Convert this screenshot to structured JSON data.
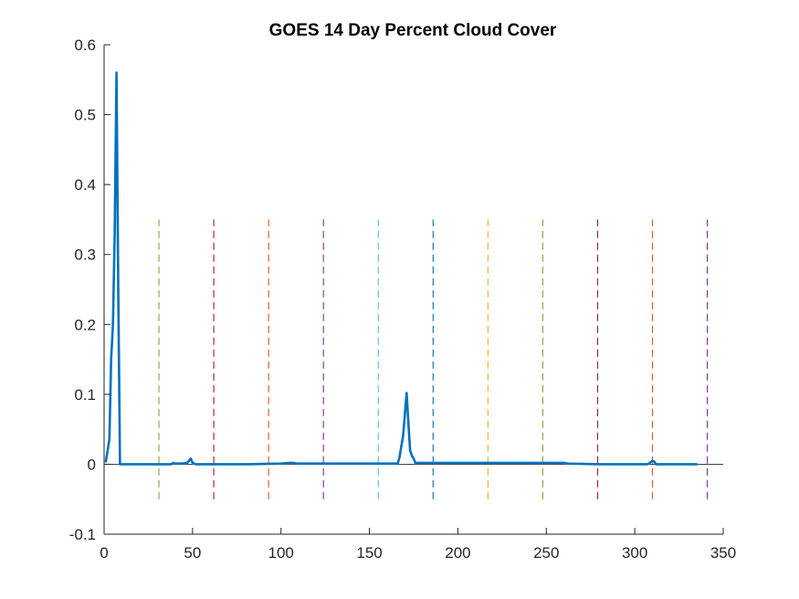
{
  "chart_data": {
    "type": "line",
    "title": "GOES 14 Day Percent Cloud Cover",
    "xlabel": "",
    "ylabel": "",
    "xlim": [
      0,
      350
    ],
    "ylim": [
      -0.1,
      0.6
    ],
    "xticks": [
      0,
      50,
      100,
      150,
      200,
      250,
      300,
      350
    ],
    "yticks": [
      -0.1,
      0,
      0.1,
      0.2,
      0.3,
      0.4,
      0.5,
      0.6
    ],
    "xtick_labels": [
      "0",
      "50",
      "100",
      "150",
      "200",
      "250",
      "300",
      "350"
    ],
    "ytick_labels": [
      "-0.1",
      "0",
      "0.1",
      "0.2",
      "0.3",
      "0.4",
      "0.5",
      "0.6"
    ],
    "grid": false,
    "zero_line": true,
    "series": [
      {
        "color": "#0072BD",
        "x": [
          1,
          2,
          3,
          4,
          5,
          6,
          7,
          8,
          9,
          10,
          20,
          30,
          38,
          39,
          40,
          44,
          47,
          48,
          49,
          50,
          52,
          60,
          80,
          100,
          105,
          107,
          109,
          120,
          140,
          160,
          166,
          167,
          168,
          169,
          170,
          171,
          172,
          173,
          174,
          175,
          176,
          178,
          180,
          185,
          200,
          220,
          240,
          260,
          262,
          280,
          300,
          307,
          308,
          309,
          310,
          311,
          312,
          314,
          320,
          335
        ],
        "y": [
          0.004,
          0.02,
          0.036,
          0.15,
          0.2,
          0.33,
          0.56,
          0.25,
          0.0,
          0.0,
          0.0,
          0.0,
          0.0,
          0.002,
          0.001,
          0.001,
          0.002,
          0.005,
          0.008,
          0.002,
          0.0,
          0.0,
          0.0,
          0.001,
          0.002,
          0.002,
          0.001,
          0.001,
          0.001,
          0.001,
          0.001,
          0.01,
          0.025,
          0.04,
          0.07,
          0.102,
          0.06,
          0.02,
          0.012,
          0.008,
          0.002,
          0.002,
          0.002,
          0.002,
          0.002,
          0.002,
          0.002,
          0.002,
          0.001,
          0.0,
          0.0,
          0.0,
          0.001,
          0.003,
          0.005,
          0.004,
          0.0,
          0.0,
          0.0,
          0.0
        ]
      }
    ],
    "vertical_lines": [
      {
        "x": 0,
        "y0": -0.05,
        "y1": 0.35,
        "color": "#EDB120"
      },
      {
        "x": 31,
        "y0": -0.05,
        "y1": 0.35,
        "color": "#77AC30"
      },
      {
        "x": 62,
        "y0": -0.05,
        "y1": 0.35,
        "color": "#A2142F"
      },
      {
        "x": 93,
        "y0": -0.05,
        "y1": 0.35,
        "color": "#D95319"
      },
      {
        "x": 124,
        "y0": -0.05,
        "y1": 0.35,
        "color": "#7E2F8E"
      },
      {
        "x": 155,
        "y0": -0.05,
        "y1": 0.35,
        "color": "#4DBEEE"
      },
      {
        "x": 186,
        "y0": -0.05,
        "y1": 0.35,
        "color": "#0072BD"
      },
      {
        "x": 217,
        "y0": -0.05,
        "y1": 0.35,
        "color": "#EDB120"
      },
      {
        "x": 248,
        "y0": -0.05,
        "y1": 0.35,
        "color": "#77AC30"
      },
      {
        "x": 279,
        "y0": -0.05,
        "y1": 0.35,
        "color": "#A2142F"
      },
      {
        "x": 310,
        "y0": -0.05,
        "y1": 0.35,
        "color": "#D95319"
      },
      {
        "x": 341,
        "y0": -0.05,
        "y1": 0.35,
        "color": "#7E2F8E"
      }
    ]
  }
}
